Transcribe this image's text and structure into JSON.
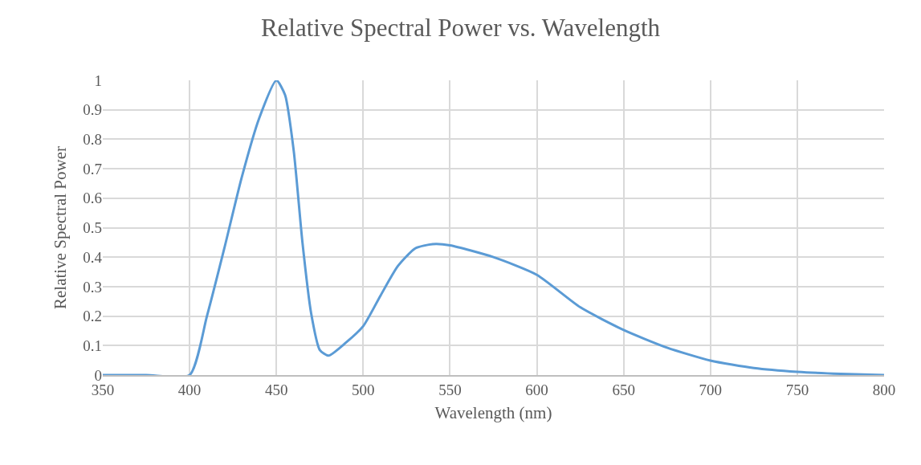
{
  "chart_data": {
    "type": "line",
    "title": "Relative Spectral Power vs. Wavelength",
    "xlabel": "Wavelength (nm)",
    "ylabel": "Relative Spectral Power",
    "x": [
      350,
      375,
      400,
      410,
      420,
      430,
      440,
      450,
      455,
      460,
      465,
      470,
      475,
      480,
      490,
      500,
      510,
      520,
      530,
      540,
      550,
      575,
      600,
      625,
      650,
      675,
      700,
      725,
      750,
      775,
      800
    ],
    "series": [
      {
        "color": "#5b9bd5",
        "values": [
          0,
          0,
          0,
          0.2,
          0.43,
          0.67,
          0.87,
          1,
          0.95,
          0.76,
          0.45,
          0.21,
          0.085,
          0.066,
          0.11,
          0.166,
          0.27,
          0.37,
          0.43,
          0.444,
          0.44,
          0.4,
          0.34,
          0.23,
          0.153,
          0.093,
          0.049,
          0.024,
          0.011,
          0.004,
          0
        ]
      }
    ],
    "xlim": [
      350,
      800
    ],
    "xticks": [
      350,
      400,
      450,
      500,
      550,
      600,
      650,
      700,
      750,
      800
    ],
    "ylim": [
      0,
      1
    ],
    "yticks": [
      0,
      0.1,
      0.2,
      0.3,
      0.4,
      0.5,
      0.6,
      0.7,
      0.8,
      0.9,
      1
    ],
    "grid": true,
    "marker": "none",
    "line_style": "solid"
  }
}
